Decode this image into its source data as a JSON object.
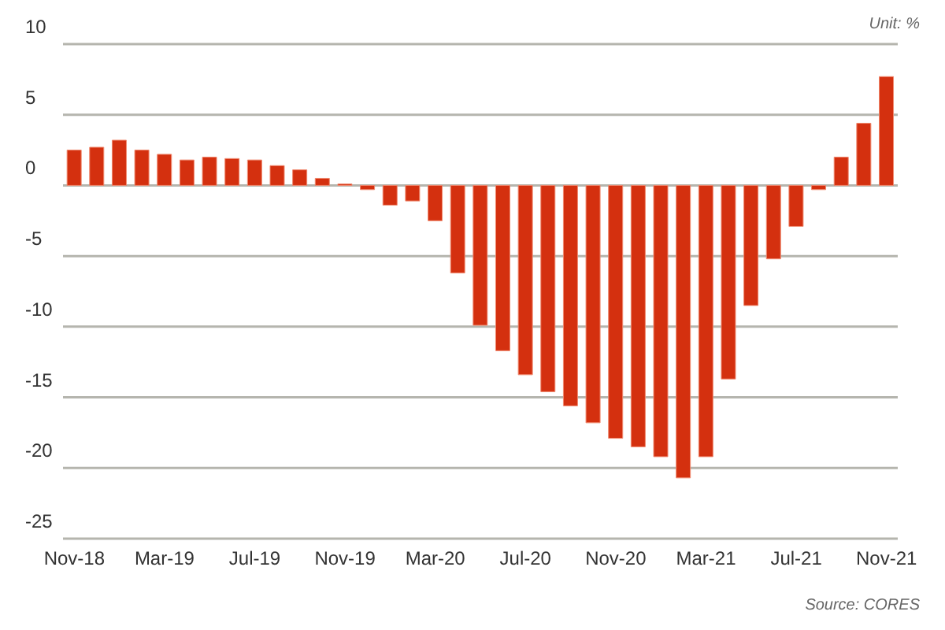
{
  "chart_data": {
    "type": "bar",
    "categories": [
      "Nov-18",
      null,
      null,
      null,
      "Mar-19",
      null,
      null,
      null,
      "Jul-19",
      null,
      null,
      null,
      "Nov-19",
      null,
      null,
      null,
      "Mar-20",
      null,
      null,
      null,
      "Jul-20",
      null,
      null,
      null,
      "Nov-20",
      null,
      null,
      null,
      "Mar-21",
      null,
      null,
      null,
      "Jul-21",
      null,
      null,
      null,
      "Nov-21"
    ],
    "values": [
      2.5,
      2.7,
      3.2,
      2.5,
      2.2,
      1.8,
      2.0,
      1.9,
      1.8,
      1.4,
      1.1,
      0.5,
      0.1,
      -0.3,
      -1.4,
      -1.1,
      -2.5,
      -6.2,
      -9.9,
      -11.7,
      -13.4,
      -14.6,
      -15.6,
      -16.8,
      -17.9,
      -18.5,
      -19.2,
      -20.7,
      -19.2,
      -13.7,
      -8.5,
      -5.2,
      -2.9,
      -0.3,
      2.0,
      4.4,
      7.7
    ],
    "color": "#d4300f",
    "ylim": [
      -25,
      10
    ],
    "yticks": [
      -25,
      -20,
      -15,
      -10,
      -5,
      0,
      5,
      10
    ],
    "grid": "y",
    "annotations": [
      "Unit: %",
      "Source: CORES"
    ]
  }
}
